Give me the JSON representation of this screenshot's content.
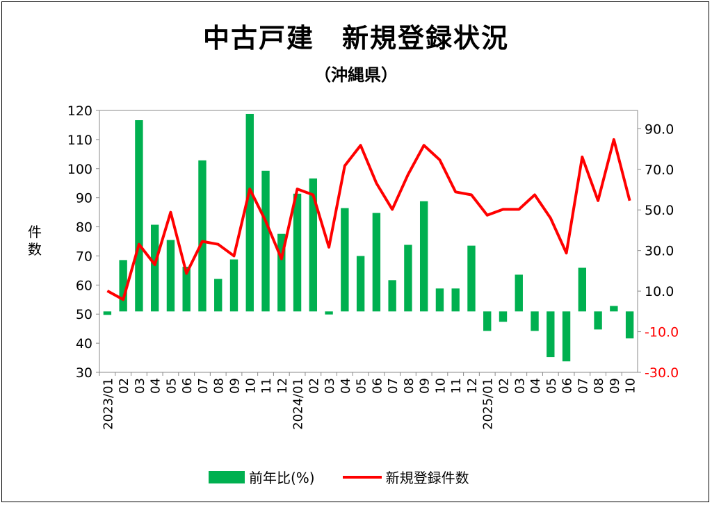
{
  "chart_data": {
    "type": "bar+line",
    "title": "中古戸建　新規登録状況",
    "subtitle": "（沖縄県）",
    "ylabel": "件数",
    "categories": [
      "2023/01",
      "02",
      "03",
      "04",
      "05",
      "06",
      "07",
      "08",
      "09",
      "10",
      "11",
      "12",
      "2024/01",
      "02",
      "03",
      "04",
      "05",
      "06",
      "07",
      "08",
      "09",
      "10",
      "11",
      "12",
      "2025/01",
      "02",
      "03",
      "04",
      "05",
      "06",
      "07",
      "08",
      "09",
      "10"
    ],
    "series": [
      {
        "name": "前年比(%)",
        "type": "bar",
        "axis": "right",
        "color": "#00b050",
        "values": [
          -1.7,
          25.3,
          94.2,
          42.7,
          35.2,
          22,
          74.4,
          16,
          25.6,
          97.3,
          69.3,
          38.2,
          58,
          65.5,
          -1.5,
          50.9,
          27.3,
          48.5,
          15.4,
          32.8,
          54.3,
          11.3,
          11.3,
          32.4,
          -9.6,
          -5.1,
          18.1,
          -9.6,
          -22.5,
          -24.6,
          21.5,
          -8.9,
          2.7,
          -13.3
        ]
      },
      {
        "name": "新規登録件数",
        "type": "line",
        "axis": "left",
        "color": "#ff0000",
        "values": [
          58,
          55,
          74,
          67,
          85,
          64,
          75,
          74,
          70,
          93,
          82,
          69,
          93,
          91,
          73,
          101,
          108,
          95,
          86,
          98,
          108,
          103,
          92,
          91,
          84,
          86,
          86,
          91,
          83,
          71,
          104,
          89,
          110,
          89
        ]
      }
    ],
    "left_axis": {
      "ylim": [
        30,
        120
      ],
      "ticks": [
        "120",
        "110",
        "100",
        "90",
        "80",
        "70",
        "60",
        "50",
        "40",
        "30"
      ]
    },
    "right_axis": {
      "ylim": [
        -30,
        99
      ],
      "ticks": [
        "90.0",
        "70.0",
        "50.0",
        "30.0",
        "10.0",
        "-10.0",
        "-30.0"
      ],
      "negative_color": "#ff0000"
    },
    "legend": {
      "position": "bottom",
      "items": [
        "前年比(%)",
        "新規登録件数"
      ]
    }
  }
}
